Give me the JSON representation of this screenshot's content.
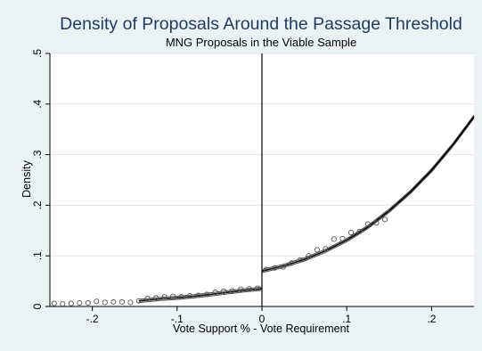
{
  "chart_data": {
    "type": "scatter",
    "title": "Density of Proposals Around the Passage Threshold",
    "subtitle": "MNG Proposals in the Viable Sample",
    "xlabel": "Vote Support % - Vote Requirement",
    "ylabel": "Density",
    "xlim": [
      -0.25,
      0.25
    ],
    "ylim": [
      0,
      0.5
    ],
    "x_ticks": [
      -0.2,
      -0.1,
      0,
      0.1,
      0.2
    ],
    "x_tick_labels": [
      "-.2",
      "-.1",
      "0",
      ".1",
      ".2"
    ],
    "y_ticks": [
      0,
      0.1,
      0.2,
      0.3,
      0.4,
      0.5
    ],
    "y_tick_labels": [
      "0",
      ".1",
      ".2",
      ".3",
      ".4",
      ".5"
    ],
    "cutoff_x": 0,
    "grid": true,
    "colors": {
      "background": "#eaf2f3",
      "plot_background": "#ffffff",
      "title": "#1e3a5f",
      "grid": "#dbe6ea",
      "marker": "#555555",
      "fit": "#000000",
      "ci": "#444444"
    },
    "series": [
      {
        "kind": "points",
        "marker": "hollow-circle",
        "x": [
          -0.245,
          -0.235,
          -0.225,
          -0.215,
          -0.205,
          -0.195,
          -0.185,
          -0.175,
          -0.165,
          -0.155,
          -0.145,
          -0.135,
          -0.125,
          -0.115,
          -0.105,
          -0.095,
          -0.085,
          -0.075,
          -0.065,
          -0.055,
          -0.045,
          -0.035,
          -0.025,
          -0.015,
          -0.005,
          0.005,
          0.015,
          0.025,
          0.035,
          0.045,
          0.055,
          0.065,
          0.075,
          0.085,
          0.095,
          0.105,
          0.115,
          0.125,
          0.135,
          0.145
        ],
        "y": [
          0.006,
          0.005,
          0.006,
          0.007,
          0.007,
          0.01,
          0.008,
          0.009,
          0.009,
          0.008,
          0.011,
          0.016,
          0.017,
          0.019,
          0.02,
          0.019,
          0.021,
          0.022,
          0.024,
          0.028,
          0.03,
          0.031,
          0.034,
          0.035,
          0.036,
          0.073,
          0.076,
          0.078,
          0.086,
          0.092,
          0.1,
          0.112,
          0.114,
          0.133,
          0.134,
          0.146,
          0.148,
          0.163,
          0.165,
          0.172
        ]
      },
      {
        "kind": "fit",
        "x": [
          -0.145,
          -0.12,
          -0.1,
          -0.08,
          -0.06,
          -0.04,
          -0.02,
          0
        ],
        "y": [
          0.011,
          0.015,
          0.017,
          0.02,
          0.024,
          0.028,
          0.032,
          0.035
        ]
      },
      {
        "kind": "fit",
        "x": [
          0,
          0.025,
          0.05,
          0.075,
          0.1,
          0.125,
          0.15,
          0.175,
          0.2,
          0.225,
          0.25
        ],
        "y": [
          0.07,
          0.08,
          0.093,
          0.11,
          0.131,
          0.157,
          0.189,
          0.226,
          0.269,
          0.319,
          0.375
        ]
      }
    ]
  }
}
